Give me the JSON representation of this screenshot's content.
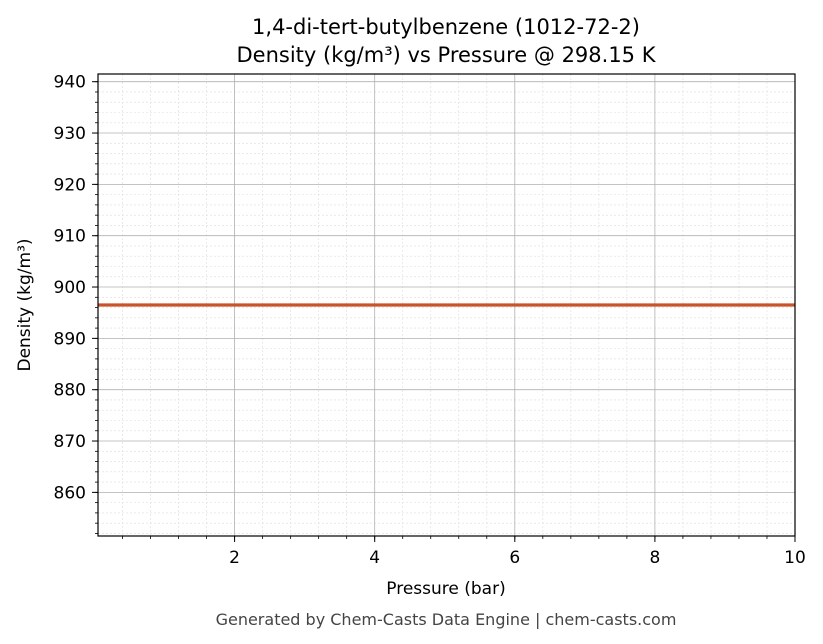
{
  "chart_data": {
    "type": "line",
    "title": "1,4-di-tert-butylbenzene (1012-72-2)",
    "subtitle": "Density (kg/m³) vs Pressure @ 298.15 K",
    "xlabel": "Pressure (bar)",
    "ylabel": "Density (kg/m³)",
    "xlim": [
      0.05,
      10
    ],
    "ylim": [
      851.5,
      941.5
    ],
    "x_ticks": [
      2,
      4,
      6,
      8,
      10
    ],
    "y_ticks": [
      860,
      870,
      880,
      890,
      900,
      910,
      920,
      930,
      940
    ],
    "grid": true,
    "series": [
      {
        "color": "#c8532a",
        "x": [
          0.05,
          1,
          2,
          3,
          4,
          5,
          6,
          7,
          8,
          9,
          10
        ],
        "y": [
          896.5,
          896.5,
          896.5,
          896.5,
          896.5,
          896.5,
          896.5,
          896.5,
          896.5,
          896.5,
          896.5
        ]
      }
    ]
  },
  "footer": "Generated by Chem-Casts Data Engine | chem-casts.com"
}
